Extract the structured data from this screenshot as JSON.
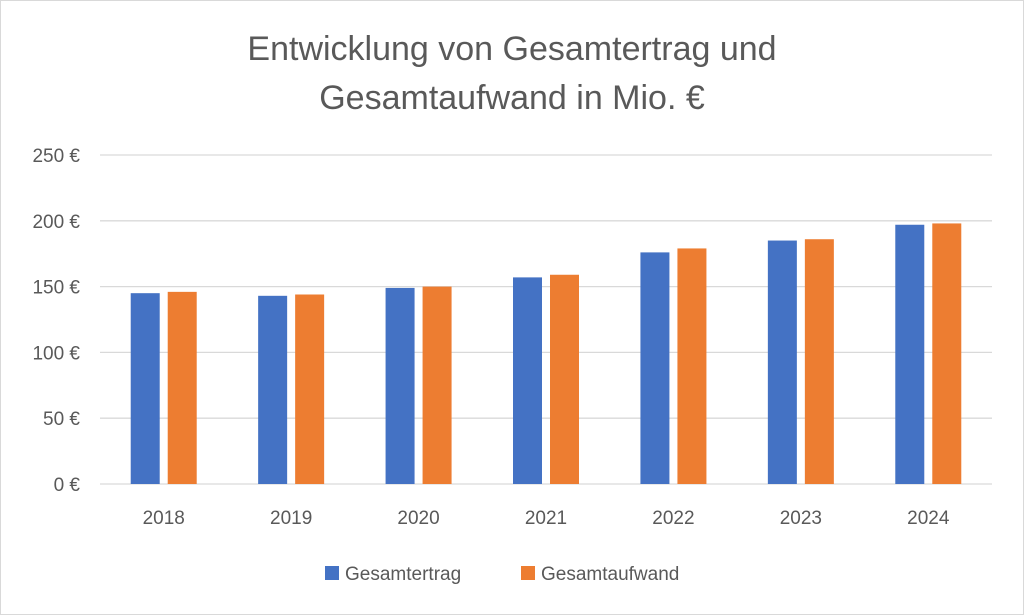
{
  "chart_data": {
    "type": "bar",
    "title_line1": "Entwicklung von Gesamtertrag und",
    "title_line2": "Gesamtaufwand in Mio. €",
    "categories": [
      "2018",
      "2019",
      "2020",
      "2021",
      "2022",
      "2023",
      "2024"
    ],
    "series": [
      {
        "name": "Gesamtertrag",
        "color": "#4472c4",
        "values": [
          145,
          143,
          149,
          157,
          176,
          185,
          197
        ]
      },
      {
        "name": "Gesamtaufwand",
        "color": "#ed7d31",
        "values": [
          146,
          144,
          150,
          159,
          179,
          186,
          198
        ]
      }
    ],
    "ylim": [
      0,
      250
    ],
    "yticks": [
      0,
      50,
      100,
      150,
      200,
      250
    ],
    "ytick_labels": [
      "0 €",
      "50 €",
      "100 €",
      "150 €",
      "200 €",
      "250 €"
    ],
    "grid": true,
    "legend": "bottom"
  }
}
